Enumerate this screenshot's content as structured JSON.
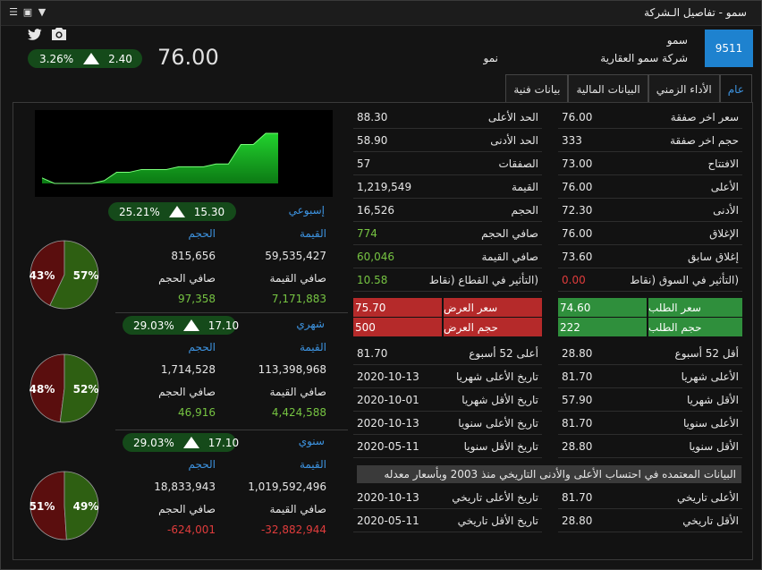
{
  "window": {
    "title": "سمو - تفاصيل الـشركة",
    "menu_icon": "menu-icon",
    "restore_icon": "restore-icon",
    "dropdown_icon": "dropdown-icon"
  },
  "header": {
    "symbol_code": "9511",
    "symbol_name": "سمو",
    "company_name": "شركة سمو العقارية",
    "sector": "نمو",
    "last_price": "76.00",
    "change": "2.40",
    "change_pct": "3.26%",
    "twitter_icon": "twitter-icon",
    "camera_icon": "camera-icon"
  },
  "tabs": [
    {
      "label": "عام",
      "active": true
    },
    {
      "label": "الأداء الزمني",
      "active": false
    },
    {
      "label": "البيانات المالية",
      "active": false
    },
    {
      "label": "بيانات فنية",
      "active": false
    }
  ],
  "stats_right": [
    {
      "label": "سعر اخر صفقة",
      "value": "76.00"
    },
    {
      "label": "حجم اخر صفقة",
      "value": "333"
    },
    {
      "label": "الافتتاح",
      "value": "73.00"
    },
    {
      "label": "الأعلى",
      "value": "76.00"
    },
    {
      "label": "الأدنى",
      "value": "72.30"
    },
    {
      "label": "الإغلاق",
      "value": "76.00"
    },
    {
      "label": "إغلاق سابق",
      "value": "73.60"
    },
    {
      "label": "(التأثير في السوق (نقاط",
      "value": "0.00"
    }
  ],
  "stats_left": [
    {
      "label": "الحد الأعلى",
      "value": "88.30"
    },
    {
      "label": "الحد الأدنى",
      "value": "58.90"
    },
    {
      "label": "الصفقات",
      "value": "57"
    },
    {
      "label": "القيمة",
      "value": "1,219,549"
    },
    {
      "label": "الحجم",
      "value": "16,526"
    },
    {
      "label": "صافي الحجم",
      "value": "774"
    },
    {
      "label": "صافي القيمة",
      "value": "60,046"
    },
    {
      "label": "(التأثير في القطاع (نقاط",
      "value": "10.58"
    }
  ],
  "bid": {
    "price_label": "سعر الطلب",
    "price": "74.60",
    "volume_label": "حجم الطلب",
    "volume": "222",
    "color": "#2f8f3c"
  },
  "ask": {
    "price_label": "سعر العرض",
    "price": "75.70",
    "volume_label": "حجم العرض",
    "volume": "500",
    "color": "#b52a2a"
  },
  "ranges_right": [
    {
      "label": "أقل 52 أسبوع",
      "value": "28.80"
    },
    {
      "label": "الأعلى شهريا",
      "value": "81.70"
    },
    {
      "label": "الأقل شهريا",
      "value": "57.90"
    },
    {
      "label": "الأعلى سنويا",
      "value": "81.70"
    },
    {
      "label": "الأقل سنويا",
      "value": "28.80"
    }
  ],
  "ranges_left": [
    {
      "label": "أعلى 52 أسبوع",
      "value": "81.70"
    },
    {
      "label": "تاريخ الأعلى شهريا",
      "value": "2020-10-13"
    },
    {
      "label": "تاريخ الأقل شهريا",
      "value": "2020-10-01"
    },
    {
      "label": "تاريخ الأعلى سنويا",
      "value": "2020-10-13"
    },
    {
      "label": "تاريخ الأقل سنويا",
      "value": "2020-05-11"
    }
  ],
  "note": "البيانات المعتمده في احتساب الأعلى والأدنى التاريخي منذ  2003  وبأسعار معدله",
  "history_right": [
    {
      "label": "الأعلى تاريخي",
      "value": "81.70"
    },
    {
      "label": "الأقل تاريخي",
      "value": "28.80"
    }
  ],
  "history_left": [
    {
      "label": "تاريخ الأعلى تاريخي",
      "value": "2020-10-13"
    },
    {
      "label": "تاريخ الأقل تاريخي",
      "value": "2020-05-11"
    }
  ],
  "periods": [
    {
      "name": "إسبوعي",
      "change": "15.30",
      "change_pct": "25.21%",
      "value_label": "القيمة",
      "volume_label": "الحجم",
      "value": "59,535,427",
      "volume": "815,656",
      "net_value_label": "صافي القيمة",
      "net_volume_label": "صافي الحجم",
      "net_value": "7,171,883",
      "net_volume": "97,358",
      "net_sign": "positive",
      "pie_green_pct": "57%",
      "pie_red_pct": "43%",
      "pie_green": 57
    },
    {
      "name": "شهري",
      "change": "17.10",
      "change_pct": "29.03%",
      "value_label": "القيمة",
      "volume_label": "الحجم",
      "value": "113,398,968",
      "volume": "1,714,528",
      "net_value_label": "صافي القيمة",
      "net_volume_label": "صافي الحجم",
      "net_value": "4,424,588",
      "net_volume": "46,916",
      "net_sign": "positive",
      "pie_green_pct": "52%",
      "pie_red_pct": "48%",
      "pie_green": 52
    },
    {
      "name": "سنوي",
      "change": "17.10",
      "change_pct": "29.03%",
      "value_label": "القيمة",
      "volume_label": "الحجم",
      "value": "1,019,592,496",
      "volume": "18,833,943",
      "net_value_label": "صافي القيمة",
      "net_volume_label": "صافي الحجم",
      "net_value": "-32,882,944",
      "net_volume": "-624,001",
      "net_sign": "negative",
      "pie_green_pct": "49%",
      "pie_red_pct": "51%",
      "pie_green": 49
    }
  ],
  "colors": {
    "accent": "#1e82cf",
    "positive": "#76c442",
    "negative": "#e03c3c",
    "pie_green": "#2e5f12",
    "pie_red": "#5a0e0e",
    "chart_fill": "#1fbf2a"
  },
  "sparkline": {
    "type": "area",
    "values": [
      68,
      66,
      66,
      66,
      66,
      67,
      70,
      70,
      71,
      71,
      71,
      72,
      72,
      72,
      73,
      73,
      80,
      80,
      84,
      84
    ]
  }
}
